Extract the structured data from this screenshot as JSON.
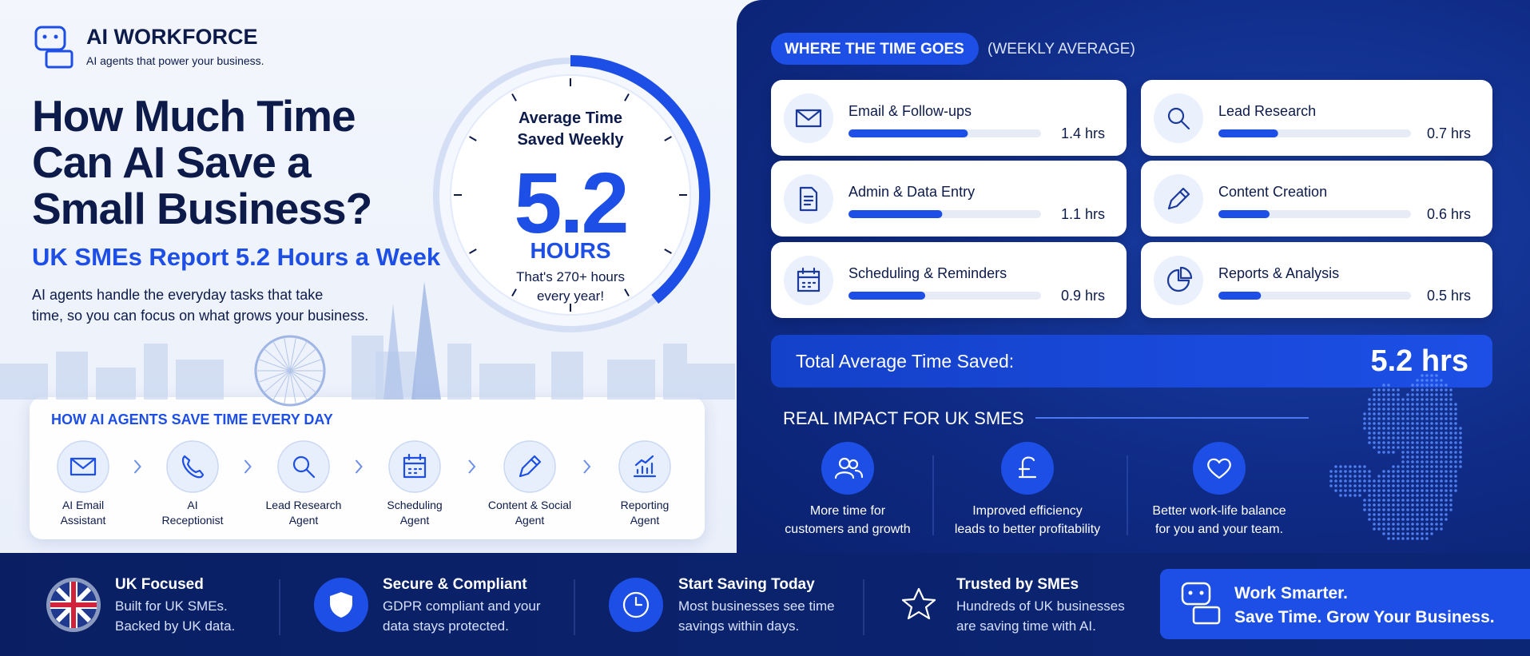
{
  "brand": {
    "name": "AI WORKFORCE",
    "tagline": "AI agents that power your business."
  },
  "hero": {
    "title_lines": [
      "How Much Time",
      "Can AI Save a",
      "Small Business?"
    ],
    "subtitle": "UK SMEs Report 5.2 Hours a Week",
    "description_lines": [
      "AI agents handle the everyday tasks that take",
      "time, so you can focus on what grows your business."
    ]
  },
  "gauge": {
    "label_lines": [
      "Average Time",
      "Saved Weekly"
    ],
    "value": 5.2,
    "unit": "HOURS",
    "note_lines": [
      "That's 270+ hours",
      "every year!"
    ]
  },
  "agents": {
    "title": "HOW AI AGENTS SAVE TIME EVERY DAY",
    "items": [
      [
        "AI Email",
        "Assistant"
      ],
      [
        "AI",
        "Receptionist"
      ],
      [
        "Lead Research",
        "Agent"
      ],
      [
        "Scheduling",
        "Agent"
      ],
      [
        "Content & Social",
        "Agent"
      ],
      [
        "Reporting",
        "Agent"
      ]
    ]
  },
  "time_breakdown": {
    "title": "WHERE THE TIME GOES",
    "subtitle": "(WEEKLY AVERAGE)",
    "items": [
      {
        "label": "Email & Follow-ups",
        "value": 1.4,
        "value_label": "1.4 hrs"
      },
      {
        "label": "Admin & Data Entry",
        "value": 1.1,
        "value_label": "1.1 hrs"
      },
      {
        "label": "Scheduling & Reminders",
        "value": 0.9,
        "value_label": "0.9 hrs"
      },
      {
        "label": "Lead Research",
        "value": 0.7,
        "value_label": "0.7 hrs"
      },
      {
        "label": "Content Creation",
        "value": 0.6,
        "value_label": "0.6 hrs"
      },
      {
        "label": "Reports & Analysis",
        "value": 0.5,
        "value_label": "0.5 hrs"
      }
    ],
    "total": {
      "label": "Total Average Time Saved:",
      "value": 5.2,
      "value_label": "5.2 hrs"
    }
  },
  "impact": {
    "title": "REAL IMPACT FOR UK SMES",
    "items": [
      [
        "More time for",
        "customers and growth"
      ],
      [
        "Improved efficiency",
        "leads to better profitability"
      ],
      [
        "Better work-life balance",
        "for you and your team."
      ]
    ]
  },
  "footer": {
    "items": [
      {
        "title": "UK Focused",
        "lines": [
          "Built for UK SMEs.",
          "Backed by UK data."
        ]
      },
      {
        "title": "Secure & Compliant",
        "lines": [
          "GDPR compliant and your",
          "data stays protected."
        ]
      },
      {
        "title": "Start Saving Today",
        "lines": [
          "Most businesses see time",
          "savings within days."
        ]
      },
      {
        "title": "Trusted by SMEs",
        "lines": [
          "Hundreds of UK businesses",
          "are saving time with AI."
        ]
      }
    ]
  },
  "cta": {
    "lines": [
      "Work Smarter.",
      "Save Time. Grow Your Business."
    ]
  }
}
